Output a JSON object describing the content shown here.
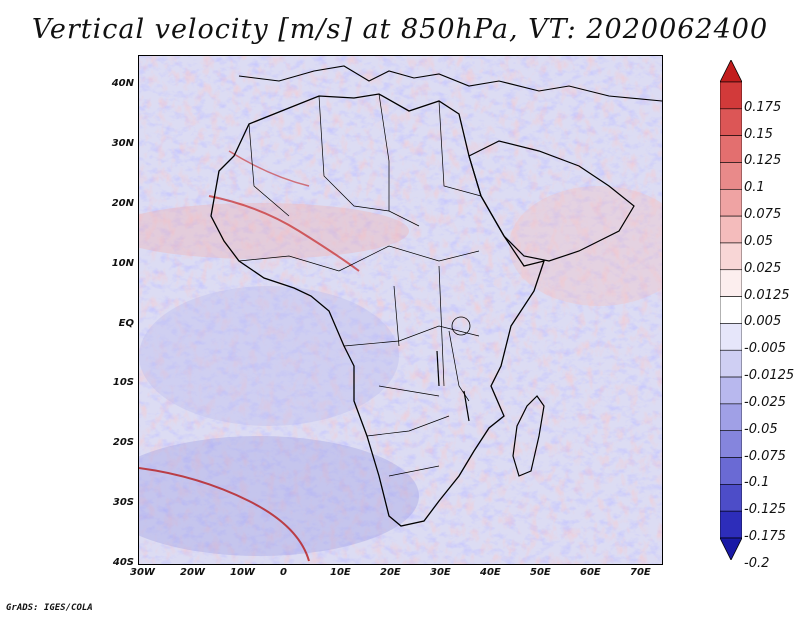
{
  "title": "Vertical velocity [m/s] at 850hPa, VT: 2020062400",
  "credit": "GrADS: IGES/COLA",
  "lat_labels": [
    "40N",
    "30N",
    "20N",
    "10N",
    "EQ",
    "10S",
    "20S",
    "30S",
    "40S"
  ],
  "lon_labels": [
    "30W",
    "20W",
    "10W",
    "0",
    "10E",
    "20E",
    "30E",
    "40E",
    "50E",
    "60E",
    "70E"
  ],
  "colorbar": {
    "labels": [
      "0.175",
      "0.15",
      "0.125",
      "0.1",
      "0.075",
      "0.05",
      "0.025",
      "0.0125",
      "0.005",
      "-0.005",
      "-0.0125",
      "-0.025",
      "-0.05",
      "-0.075",
      "-0.1",
      "-0.125",
      "-0.175",
      "-0.2"
    ],
    "colors": [
      "#c21d1d",
      "#d23a3a",
      "#dc5656",
      "#e36f6f",
      "#e98a8a",
      "#efa3a3",
      "#f4bcbc",
      "#f8d6d6",
      "#fceeee",
      "#ffffff",
      "#e6e6fa",
      "#cfcff3",
      "#b8b8ee",
      "#a0a0e6",
      "#8585dd",
      "#6a6ad4",
      "#4d4dc8",
      "#2d2dba",
      "#1a1aa6"
    ]
  },
  "colors": {
    "upward": "#c62828",
    "downward": "#2a2ab5",
    "coast": "#000000"
  }
}
